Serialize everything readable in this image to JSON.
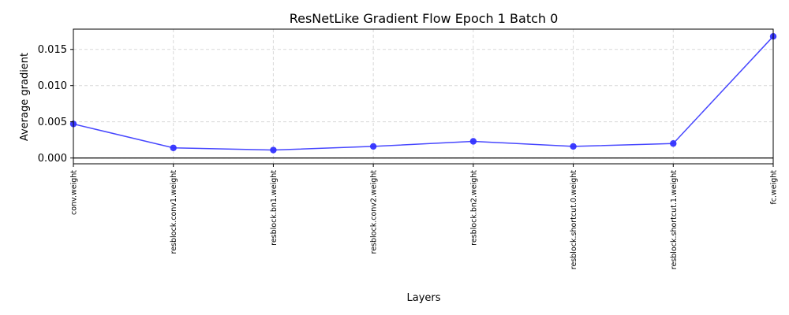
{
  "chart_data": {
    "type": "line",
    "title": "ResNetLike Gradient Flow Epoch 1 Batch 0",
    "xlabel": "Layers",
    "ylabel": "Average gradient",
    "categories": [
      "conv.weight",
      "resblock.conv1.weight",
      "resblock.bn1.weight",
      "resblock.conv2.weight",
      "resblock.bn2.weight",
      "resblock.shortcut.0.weight",
      "resblock.shortcut.1.weight",
      "fc.weight"
    ],
    "series": [
      {
        "values": [
          0.0047,
          0.0014,
          0.0011,
          0.0016,
          0.0023,
          0.0016,
          0.002,
          0.0168
        ],
        "color": "#3333ff"
      }
    ],
    "ylim": [
      -0.0008,
      0.0178
    ],
    "yticks": [
      "0.000",
      "0.005",
      "0.010",
      "0.015"
    ],
    "ytick_values": [
      0.0,
      0.005,
      0.01,
      0.015
    ],
    "grid": true,
    "zero_line": true,
    "legend": "none"
  }
}
